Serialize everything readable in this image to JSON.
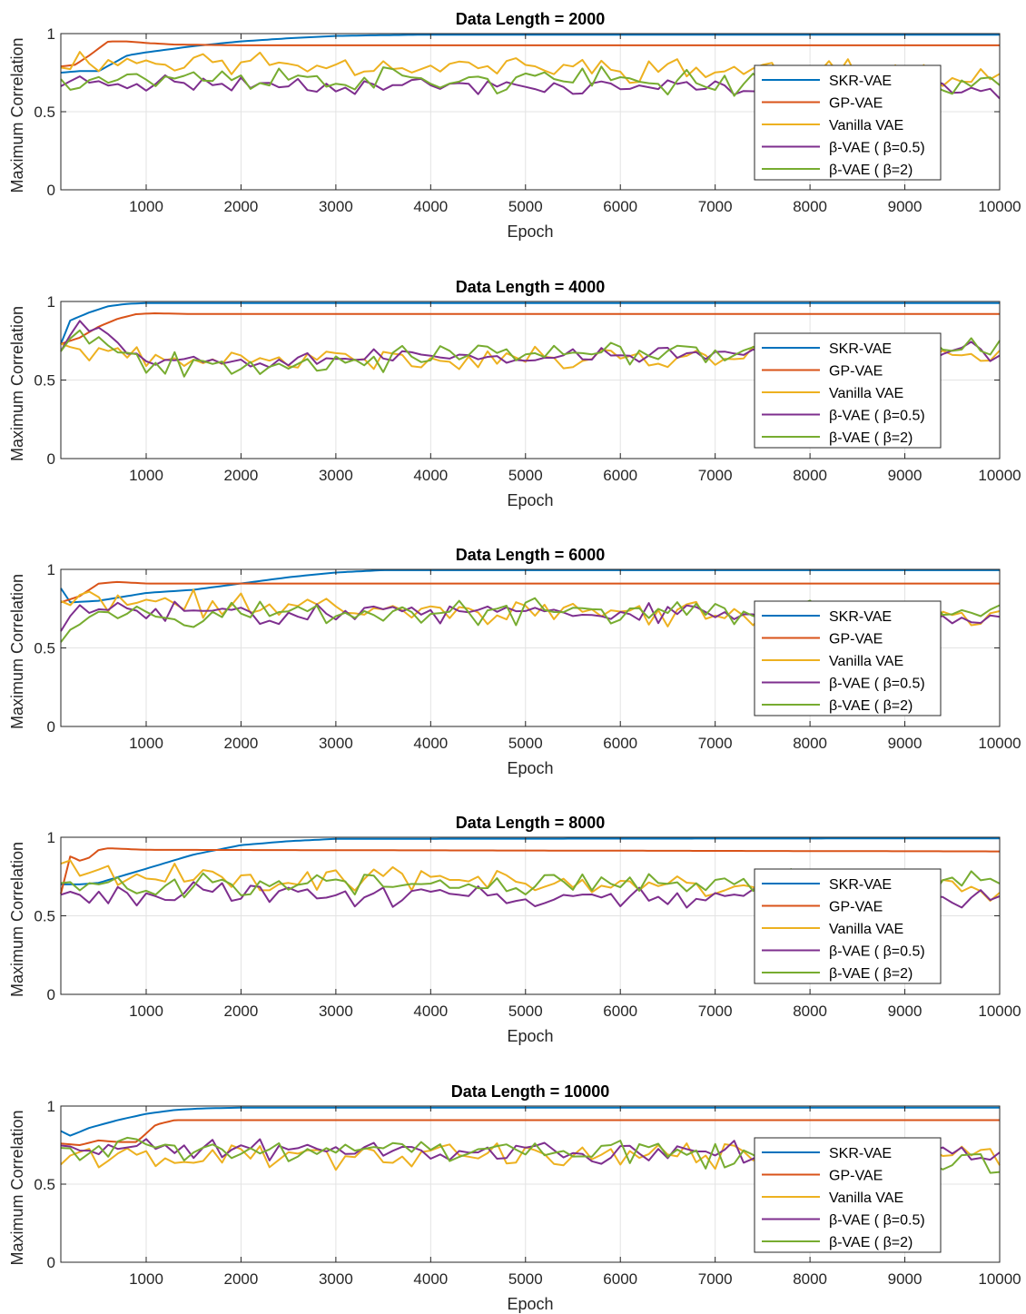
{
  "chart_data": [
    {
      "type": "line",
      "title": "Data Length = 2000",
      "xlabel": "Epoch",
      "ylabel": "Maximum Correlation",
      "xlim": [
        100,
        10000
      ],
      "ylim": [
        0,
        1
      ],
      "xticks": [
        1000,
        2000,
        3000,
        4000,
        5000,
        6000,
        7000,
        8000,
        9000,
        10000
      ],
      "yticks": [
        0,
        0.5,
        1
      ],
      "grid": true,
      "legend": "right",
      "series": [
        {
          "name": "SKR-VAE",
          "color": "#0072BD",
          "keypoints": [
            [
              100,
              0.75
            ],
            [
              300,
              0.76
            ],
            [
              500,
              0.76
            ],
            [
              800,
              0.86
            ],
            [
              1000,
              0.88
            ],
            [
              1500,
              0.92
            ],
            [
              2000,
              0.95
            ],
            [
              2500,
              0.97
            ],
            [
              3000,
              0.985
            ],
            [
              3500,
              0.99
            ],
            [
              4000,
              0.993
            ],
            [
              10000,
              0.993
            ]
          ],
          "noise": 0
        },
        {
          "name": "GP-VAE",
          "color": "#D95319",
          "keypoints": [
            [
              100,
              0.79
            ],
            [
              250,
              0.8
            ],
            [
              400,
              0.86
            ],
            [
              600,
              0.95
            ],
            [
              800,
              0.95
            ],
            [
              1000,
              0.94
            ],
            [
              1300,
              0.93
            ],
            [
              2000,
              0.925
            ],
            [
              10000,
              0.925
            ]
          ],
          "noise": 0
        },
        {
          "name": "Vanilla VAE",
          "color": "#EDB120",
          "keypoints": [
            [
              100,
              0.83
            ],
            [
              10000,
              0.74
            ]
          ],
          "noise": 0.07,
          "seed": 11
        },
        {
          "name": "β-VAE ( β=0.5)",
          "color": "#7E2F8E",
          "keypoints": [
            [
              100,
              0.69
            ],
            [
              10000,
              0.63
            ]
          ],
          "noise": 0.05,
          "seed": 23
        },
        {
          "name": "β-VAE ( β=2)",
          "color": "#77AC30",
          "keypoints": [
            [
              100,
              0.72
            ],
            [
              10000,
              0.68
            ]
          ],
          "noise": 0.07,
          "seed": 37
        }
      ]
    },
    {
      "type": "line",
      "title": "Data Length = 4000",
      "xlabel": "Epoch",
      "ylabel": "Maximum Correlation",
      "xlim": [
        100,
        10000
      ],
      "ylim": [
        0,
        1
      ],
      "xticks": [
        1000,
        2000,
        3000,
        4000,
        5000,
        6000,
        7000,
        8000,
        9000,
        10000
      ],
      "yticks": [
        0,
        0.5,
        1
      ],
      "grid": true,
      "legend": "right",
      "series": [
        {
          "name": "SKR-VAE",
          "color": "#0072BD",
          "keypoints": [
            [
              100,
              0.73
            ],
            [
              200,
              0.88
            ],
            [
              400,
              0.93
            ],
            [
              600,
              0.97
            ],
            [
              800,
              0.985
            ],
            [
              1000,
              0.99
            ],
            [
              10000,
              0.99
            ]
          ],
          "noise": 0
        },
        {
          "name": "GP-VAE",
          "color": "#D95319",
          "keypoints": [
            [
              100,
              0.73
            ],
            [
              300,
              0.77
            ],
            [
              500,
              0.84
            ],
            [
              700,
              0.89
            ],
            [
              900,
              0.92
            ],
            [
              1100,
              0.925
            ],
            [
              1500,
              0.92
            ],
            [
              10000,
              0.92
            ]
          ],
          "noise": 0
        },
        {
          "name": "Vanilla VAE",
          "color": "#EDB120",
          "keypoints": [
            [
              100,
              0.71
            ],
            [
              400,
              0.69
            ],
            [
              1000,
              0.62
            ],
            [
              10000,
              0.66
            ]
          ],
          "noise": 0.06,
          "seed": 41
        },
        {
          "name": "β-VAE ( β=0.5)",
          "color": "#7E2F8E",
          "keypoints": [
            [
              100,
              0.73
            ],
            [
              300,
              0.88
            ],
            [
              600,
              0.8
            ],
            [
              1000,
              0.63
            ],
            [
              10000,
              0.68
            ]
          ],
          "noise": 0.05,
          "seed": 53
        },
        {
          "name": "β-VAE ( β=2)",
          "color": "#77AC30",
          "keypoints": [
            [
              100,
              0.72
            ],
            [
              300,
              0.84
            ],
            [
              1000,
              0.6
            ],
            [
              10000,
              0.73
            ]
          ],
          "noise": 0.07,
          "seed": 67
        }
      ]
    },
    {
      "type": "line",
      "title": "Data Length = 6000",
      "xlabel": "Epoch",
      "ylabel": "Maximum Correlation",
      "xlim": [
        100,
        10000
      ],
      "ylim": [
        0,
        1
      ],
      "xticks": [
        1000,
        2000,
        3000,
        4000,
        5000,
        6000,
        7000,
        8000,
        9000,
        10000
      ],
      "yticks": [
        0,
        0.5,
        1
      ],
      "grid": true,
      "legend": "right",
      "series": [
        {
          "name": "SKR-VAE",
          "color": "#0072BD",
          "keypoints": [
            [
              100,
              0.88
            ],
            [
              200,
              0.79
            ],
            [
              500,
              0.8
            ],
            [
              1000,
              0.85
            ],
            [
              1500,
              0.87
            ],
            [
              2000,
              0.91
            ],
            [
              2500,
              0.95
            ],
            [
              3000,
              0.98
            ],
            [
              3500,
              0.995
            ],
            [
              10000,
              0.995
            ]
          ],
          "noise": 0
        },
        {
          "name": "GP-VAE",
          "color": "#D95319",
          "keypoints": [
            [
              100,
              0.79
            ],
            [
              300,
              0.83
            ],
            [
              500,
              0.91
            ],
            [
              700,
              0.92
            ],
            [
              1000,
              0.91
            ],
            [
              10000,
              0.91
            ]
          ],
          "noise": 0
        },
        {
          "name": "Vanilla VAE",
          "color": "#EDB120",
          "keypoints": [
            [
              100,
              0.8
            ],
            [
              10000,
              0.67
            ]
          ],
          "noise": 0.07,
          "seed": 71
        },
        {
          "name": "β-VAE ( β=0.5)",
          "color": "#7E2F8E",
          "keypoints": [
            [
              100,
              0.6
            ],
            [
              300,
              0.74
            ],
            [
              10000,
              0.7
            ]
          ],
          "noise": 0.06,
          "seed": 83
        },
        {
          "name": "β-VAE ( β=2)",
          "color": "#77AC30",
          "keypoints": [
            [
              100,
              0.6
            ],
            [
              300,
              0.73
            ],
            [
              10000,
              0.72
            ]
          ],
          "noise": 0.07,
          "seed": 97
        }
      ]
    },
    {
      "type": "line",
      "title": "Data Length = 8000",
      "xlabel": "Epoch",
      "ylabel": "Maximum Correlation",
      "xlim": [
        100,
        10000
      ],
      "ylim": [
        0,
        1
      ],
      "xticks": [
        1000,
        2000,
        3000,
        4000,
        5000,
        6000,
        7000,
        8000,
        9000,
        10000
      ],
      "yticks": [
        0,
        0.5,
        1
      ],
      "grid": true,
      "legend": "right",
      "series": [
        {
          "name": "SKR-VAE",
          "color": "#0072BD",
          "keypoints": [
            [
              100,
              0.7
            ],
            [
              300,
              0.7
            ],
            [
              500,
              0.71
            ],
            [
              1000,
              0.8
            ],
            [
              1500,
              0.89
            ],
            [
              2000,
              0.95
            ],
            [
              2500,
              0.975
            ],
            [
              3000,
              0.99
            ],
            [
              10000,
              0.993
            ]
          ],
          "noise": 0
        },
        {
          "name": "GP-VAE",
          "color": "#D95319",
          "keypoints": [
            [
              100,
              0.64
            ],
            [
              200,
              0.88
            ],
            [
              300,
              0.85
            ],
            [
              400,
              0.87
            ],
            [
              500,
              0.92
            ],
            [
              600,
              0.93
            ],
            [
              1000,
              0.92
            ],
            [
              10000,
              0.91
            ]
          ],
          "noise": 0
        },
        {
          "name": "Vanilla VAE",
          "color": "#EDB120",
          "keypoints": [
            [
              100,
              0.86
            ],
            [
              300,
              0.77
            ],
            [
              10000,
              0.65
            ]
          ],
          "noise": 0.07,
          "seed": 101
        },
        {
          "name": "β-VAE ( β=0.5)",
          "color": "#7E2F8E",
          "keypoints": [
            [
              100,
              0.65
            ],
            [
              10000,
              0.6
            ]
          ],
          "noise": 0.06,
          "seed": 113
        },
        {
          "name": "β-VAE ( β=2)",
          "color": "#77AC30",
          "keypoints": [
            [
              100,
              0.7
            ],
            [
              10000,
              0.72
            ]
          ],
          "noise": 0.07,
          "seed": 127
        }
      ]
    },
    {
      "type": "line",
      "title": "Data Length = 10000",
      "xlabel": "Epoch",
      "ylabel": "Maximum Correlation",
      "xlim": [
        100,
        10000
      ],
      "ylim": [
        0,
        1
      ],
      "xticks": [
        1000,
        2000,
        3000,
        4000,
        5000,
        6000,
        7000,
        8000,
        9000,
        10000
      ],
      "yticks": [
        0,
        0.5,
        1
      ],
      "grid": true,
      "legend": "right",
      "series": [
        {
          "name": "SKR-VAE",
          "color": "#0072BD",
          "keypoints": [
            [
              100,
              0.84
            ],
            [
              200,
              0.81
            ],
            [
              400,
              0.86
            ],
            [
              700,
              0.91
            ],
            [
              1000,
              0.95
            ],
            [
              1300,
              0.975
            ],
            [
              1600,
              0.985
            ],
            [
              2000,
              0.99
            ],
            [
              10000,
              0.99
            ]
          ],
          "noise": 0
        },
        {
          "name": "GP-VAE",
          "color": "#D95319",
          "keypoints": [
            [
              100,
              0.76
            ],
            [
              300,
              0.75
            ],
            [
              500,
              0.78
            ],
            [
              700,
              0.77
            ],
            [
              900,
              0.77
            ],
            [
              1100,
              0.88
            ],
            [
              1300,
              0.91
            ],
            [
              1600,
              0.91
            ],
            [
              10000,
              0.91
            ]
          ],
          "noise": 0
        },
        {
          "name": "Vanilla VAE",
          "color": "#EDB120",
          "keypoints": [
            [
              100,
              0.68
            ],
            [
              10000,
              0.69
            ]
          ],
          "noise": 0.07,
          "seed": 131
        },
        {
          "name": "β-VAE ( β=0.5)",
          "color": "#7E2F8E",
          "keypoints": [
            [
              100,
              0.74
            ],
            [
              10000,
              0.68
            ]
          ],
          "noise": 0.06,
          "seed": 149
        },
        {
          "name": "β-VAE ( β=2)",
          "color": "#77AC30",
          "keypoints": [
            [
              100,
              0.75
            ],
            [
              10000,
              0.66
            ]
          ],
          "noise": 0.07,
          "seed": 157
        }
      ]
    }
  ]
}
